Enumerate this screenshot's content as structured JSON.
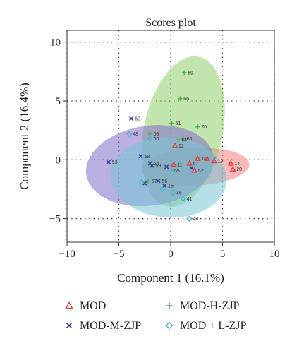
{
  "chart_data": {
    "type": "scatter",
    "title": "Scores plot",
    "xlabel": "Component 1 (16.1%)",
    "ylabel": "Component 2 (16.4%)",
    "xlim": [
      -10,
      10
    ],
    "ylim": [
      -7,
      11
    ],
    "xticks": [
      -10,
      -5,
      0,
      5,
      10
    ],
    "yticks": [
      -5,
      0,
      5,
      10
    ],
    "grid": true,
    "legend_position": "bottom",
    "series": [
      {
        "name": "MOD",
        "marker": "triangle",
        "color": "#e8393c",
        "ellipse_color": "#f08080",
        "ellipse": {
          "cx": 2.4,
          "cy": -0.6,
          "rx": 5.2,
          "ry": 1.6,
          "angle": 3
        },
        "points": [
          {
            "x": 0.4,
            "y": 1.2,
            "label": "12"
          },
          {
            "x": 0.3,
            "y": -0.4,
            "label": "11"
          },
          {
            "x": 1.8,
            "y": -0.3,
            "label": "67"
          },
          {
            "x": 2.6,
            "y": 0.1,
            "label": "18"
          },
          {
            "x": 3.5,
            "y": 0.1,
            "label": "17"
          },
          {
            "x": 4.2,
            "y": -0.1,
            "label": "19"
          },
          {
            "x": 5.8,
            "y": -0.3,
            "label": "14"
          },
          {
            "x": 6.0,
            "y": -0.8,
            "label": "20"
          },
          {
            "x": 2.3,
            "y": -0.9,
            "label": "52"
          }
        ]
      },
      {
        "name": "MOD-H-ZJP",
        "marker": "plus",
        "color": "#4caf50",
        "ellipse_color": "#8fce6a",
        "ellipse": {
          "cx": 1.2,
          "cy": 2.4,
          "rx": 3.8,
          "ry": 6.5,
          "angle": -12
        },
        "points": [
          {
            "x": 1.3,
            "y": 7.4,
            "label": "69"
          },
          {
            "x": 0.9,
            "y": 5.2,
            "label": "66"
          },
          {
            "x": 0.1,
            "y": 3.1,
            "label": "61"
          },
          {
            "x": 2.6,
            "y": 2.8,
            "label": "70"
          },
          {
            "x": 1.2,
            "y": 1.8,
            "label": "65"
          },
          {
            "x": 0.7,
            "y": 1.7,
            "label": "64"
          },
          {
            "x": -2.0,
            "y": 2.2,
            "label": "68"
          },
          {
            "x": -2.2,
            "y": -1.8,
            "label": "57"
          }
        ]
      },
      {
        "name": "MOD-M-ZJP",
        "marker": "cross",
        "color": "#3a3f9e",
        "ellipse_color": "#7f6ec9",
        "ellipse": {
          "cx": -2.0,
          "cy": -0.5,
          "rx": 6.2,
          "ry": 3.4,
          "angle": 8
        },
        "points": [
          {
            "x": -3.8,
            "y": 3.5,
            "label": "60"
          },
          {
            "x": -6.0,
            "y": -0.2,
            "label": "53"
          },
          {
            "x": -2.9,
            "y": 0.3,
            "label": "58"
          },
          {
            "x": -2.0,
            "y": -0.3,
            "label": "54"
          },
          {
            "x": -1.8,
            "y": -0.5,
            "label": "59"
          },
          {
            "x": -0.4,
            "y": -0.6,
            "label": ""
          },
          {
            "x": -1.2,
            "y": -1.8,
            "label": "56"
          },
          {
            "x": -0.6,
            "y": -2.2,
            "label": "15"
          },
          {
            "x": 2.0,
            "y": -0.7,
            "label": ""
          },
          {
            "x": -2.5,
            "y": -2.0,
            "label": ""
          }
        ]
      },
      {
        "name": "MOD + L-ZJP",
        "marker": "diamond",
        "color": "#4fb3bf",
        "ellipse_color": "#79c7d6",
        "ellipse": {
          "cx": -0.2,
          "cy": -1.5,
          "rx": 5.6,
          "ry": 3.4,
          "angle": -4
        },
        "points": [
          {
            "x": -4.0,
            "y": 2.2,
            "label": "48"
          },
          {
            "x": -2.0,
            "y": 1.8,
            "label": "50"
          },
          {
            "x": 0.0,
            "y": -0.9,
            "label": "55"
          },
          {
            "x": 0.2,
            "y": -2.8,
            "label": "46"
          },
          {
            "x": 1.2,
            "y": -3.3,
            "label": "41"
          },
          {
            "x": 1.8,
            "y": -5.0,
            "label": "43"
          },
          {
            "x": -0.8,
            "y": -2.5,
            "label": ""
          },
          {
            "x": -2.8,
            "y": -1.9,
            "label": ""
          }
        ]
      }
    ]
  }
}
